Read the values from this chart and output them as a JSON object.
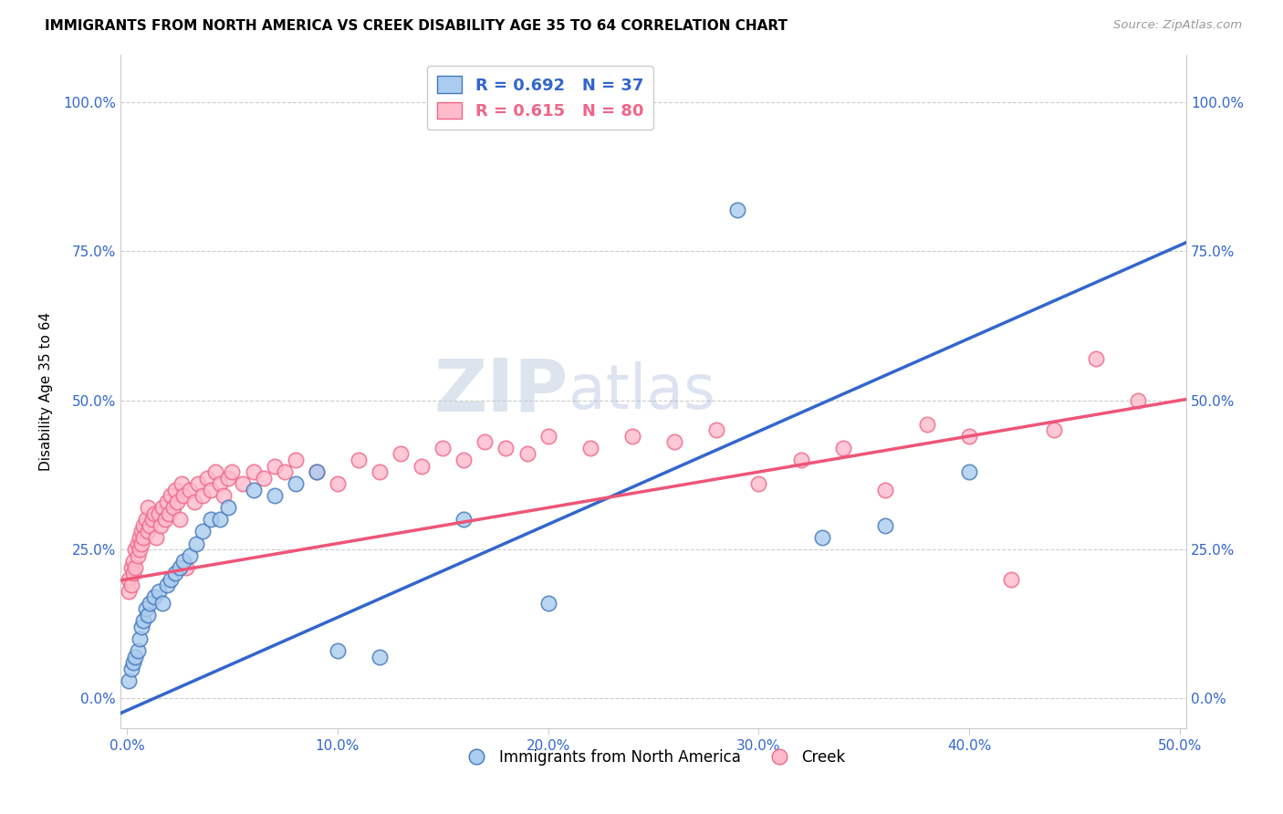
{
  "title": "IMMIGRANTS FROM NORTH AMERICA VS CREEK DISABILITY AGE 35 TO 64 CORRELATION CHART",
  "source": "Source: ZipAtlas.com",
  "ylabel": "Disability Age 35 to 64",
  "xlim_min": -0.003,
  "xlim_max": 0.503,
  "ylim_min": -0.05,
  "ylim_max": 1.08,
  "xticks": [
    0.0,
    0.1,
    0.2,
    0.3,
    0.4,
    0.5
  ],
  "xticklabels": [
    "0.0%",
    "10.0%",
    "20.0%",
    "30.0%",
    "40.0%",
    "50.0%"
  ],
  "yticks": [
    0.0,
    0.25,
    0.5,
    0.75,
    1.0
  ],
  "yticklabels": [
    "0.0%",
    "25.0%",
    "50.0%",
    "75.0%",
    "100.0%"
  ],
  "blue_face_color": "#AACCEE",
  "blue_edge_color": "#4477BB",
  "pink_face_color": "#FFBBCC",
  "pink_edge_color": "#EE6688",
  "blue_line_color": "#3366CC",
  "pink_line_color": "#EE5577",
  "blue_R": 0.692,
  "blue_N": 37,
  "pink_R": 0.615,
  "pink_N": 80,
  "watermark_zip": "ZIP",
  "watermark_atlas": "atlas",
  "legend_label_blue": "Immigrants from North America",
  "legend_label_pink": "Creek",
  "blue_x": [
    0.001,
    0.002,
    0.003,
    0.004,
    0.005,
    0.006,
    0.007,
    0.008,
    0.009,
    0.01,
    0.011,
    0.013,
    0.015,
    0.017,
    0.019,
    0.021,
    0.023,
    0.025,
    0.027,
    0.03,
    0.033,
    0.036,
    0.04,
    0.044,
    0.048,
    0.06,
    0.07,
    0.08,
    0.09,
    0.1,
    0.12,
    0.16,
    0.2,
    0.29,
    0.33,
    0.36,
    0.4
  ],
  "blue_y": [
    0.03,
    0.05,
    0.06,
    0.07,
    0.08,
    0.1,
    0.12,
    0.13,
    0.15,
    0.14,
    0.16,
    0.17,
    0.18,
    0.16,
    0.19,
    0.2,
    0.21,
    0.22,
    0.23,
    0.24,
    0.26,
    0.28,
    0.3,
    0.3,
    0.32,
    0.35,
    0.34,
    0.36,
    0.38,
    0.08,
    0.07,
    0.3,
    0.16,
    0.82,
    0.27,
    0.29,
    0.38
  ],
  "pink_x": [
    0.001,
    0.001,
    0.002,
    0.002,
    0.003,
    0.003,
    0.004,
    0.004,
    0.005,
    0.005,
    0.006,
    0.006,
    0.007,
    0.007,
    0.008,
    0.008,
    0.009,
    0.01,
    0.01,
    0.011,
    0.012,
    0.013,
    0.014,
    0.015,
    0.016,
    0.017,
    0.018,
    0.019,
    0.02,
    0.021,
    0.022,
    0.023,
    0.024,
    0.025,
    0.026,
    0.027,
    0.028,
    0.03,
    0.032,
    0.034,
    0.036,
    0.038,
    0.04,
    0.042,
    0.044,
    0.046,
    0.048,
    0.05,
    0.055,
    0.06,
    0.065,
    0.07,
    0.075,
    0.08,
    0.09,
    0.1,
    0.11,
    0.12,
    0.13,
    0.14,
    0.15,
    0.16,
    0.17,
    0.18,
    0.19,
    0.2,
    0.22,
    0.24,
    0.26,
    0.28,
    0.3,
    0.32,
    0.34,
    0.36,
    0.38,
    0.4,
    0.42,
    0.44,
    0.46,
    0.48
  ],
  "pink_y": [
    0.2,
    0.18,
    0.22,
    0.19,
    0.23,
    0.21,
    0.25,
    0.22,
    0.24,
    0.26,
    0.27,
    0.25,
    0.28,
    0.26,
    0.29,
    0.27,
    0.3,
    0.28,
    0.32,
    0.29,
    0.3,
    0.31,
    0.27,
    0.31,
    0.29,
    0.32,
    0.3,
    0.33,
    0.31,
    0.34,
    0.32,
    0.35,
    0.33,
    0.3,
    0.36,
    0.34,
    0.22,
    0.35,
    0.33,
    0.36,
    0.34,
    0.37,
    0.35,
    0.38,
    0.36,
    0.34,
    0.37,
    0.38,
    0.36,
    0.38,
    0.37,
    0.39,
    0.38,
    0.4,
    0.38,
    0.36,
    0.4,
    0.38,
    0.41,
    0.39,
    0.42,
    0.4,
    0.43,
    0.42,
    0.41,
    0.44,
    0.42,
    0.44,
    0.43,
    0.45,
    0.36,
    0.4,
    0.42,
    0.35,
    0.46,
    0.44,
    0.2,
    0.45,
    0.57,
    0.5
  ]
}
